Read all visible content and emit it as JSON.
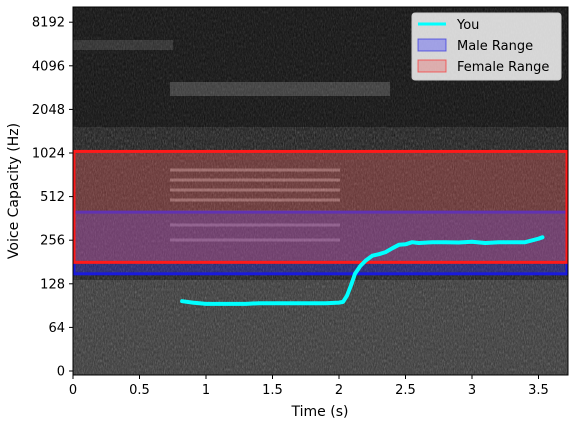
{
  "chart_data": {
    "type": "line",
    "xlabel": "Time (s)",
    "ylabel": "Voice Capacity (Hz)",
    "xlim": [
      0,
      3.72
    ],
    "y_scale": "log2",
    "y_ticks": [
      0,
      64,
      128,
      256,
      512,
      1024,
      2048,
      4096,
      8192
    ],
    "x_ticks": [
      0,
      0.5,
      1,
      1.5,
      2,
      2.5,
      3,
      3.5
    ],
    "x_tick_labels": [
      "0",
      "0.5",
      "1",
      "1.5",
      "2",
      "2.5",
      "3",
      "3.5"
    ],
    "y_tick_labels": [
      "0",
      "64",
      "128",
      "256",
      "512",
      "1024",
      "2048",
      "4096",
      "8192"
    ],
    "background": "spectrogram (grayscale)",
    "legend_position": "top-right",
    "ranges": [
      {
        "name": "Male Range",
        "y_range": [
          150,
          400
        ],
        "color": "#3c3cff",
        "edge": "#1a1add"
      },
      {
        "name": "Female Range",
        "y_range": [
          180,
          1050
        ],
        "color": "#e86060",
        "edge": "#ff1a1a"
      }
    ],
    "series": [
      {
        "name": "You",
        "color": "#00ffff",
        "x": [
          0.82,
          0.9,
          1.0,
          1.1,
          1.2,
          1.3,
          1.4,
          1.5,
          1.6,
          1.7,
          1.8,
          1.9,
          2.0,
          2.03,
          2.06,
          2.09,
          2.12,
          2.16,
          2.2,
          2.25,
          2.3,
          2.35,
          2.4,
          2.45,
          2.5,
          2.55,
          2.6,
          2.7,
          2.8,
          2.9,
          3.0,
          3.1,
          3.2,
          3.3,
          3.4,
          3.45,
          3.5,
          3.53
        ],
        "y": [
          97,
          95,
          93,
          93,
          93,
          93,
          94,
          94,
          94,
          94,
          94,
          94,
          95,
          96,
          106,
          125,
          150,
          170,
          185,
          200,
          205,
          212,
          225,
          238,
          240,
          248,
          245,
          248,
          248,
          247,
          250,
          245,
          248,
          248,
          248,
          255,
          262,
          268
        ]
      }
    ]
  }
}
